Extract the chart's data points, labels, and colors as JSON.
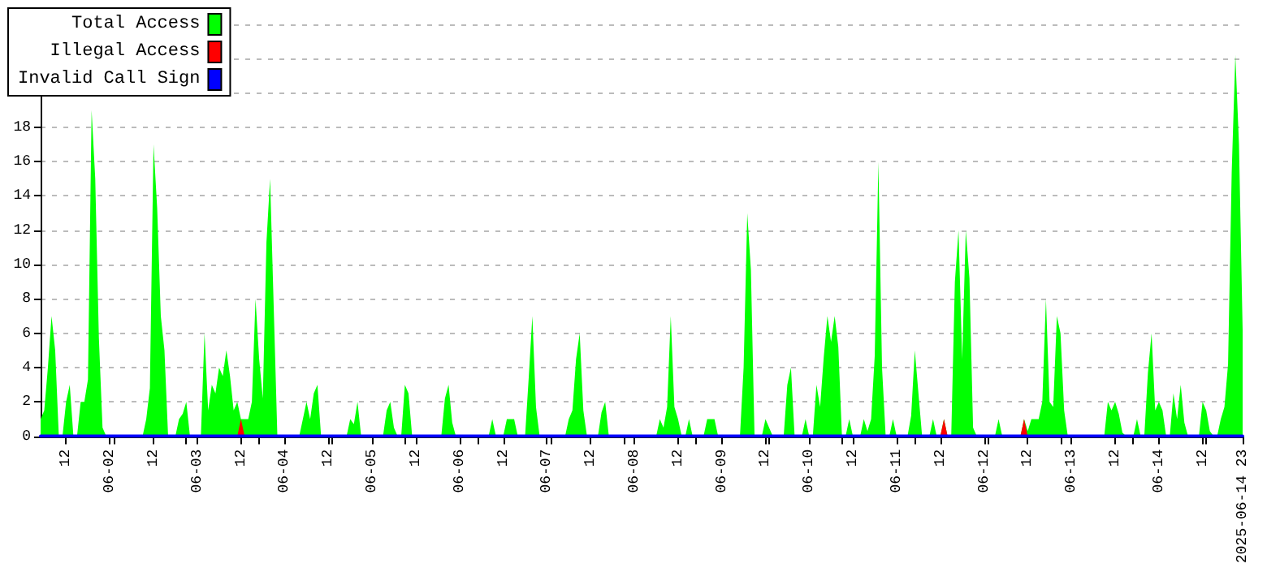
{
  "chart_data": {
    "type": "area",
    "xlim": [
      "2025-06-01T05:00",
      "2025-06-14T23:00"
    ],
    "ylim": [
      0,
      24
    ],
    "xticks": [
      {
        "value": "2025-06-01T12:00",
        "label": "12"
      },
      {
        "value": "2025-06-02T00:00",
        "label": "06-02"
      },
      {
        "value": "2025-06-02T12:00",
        "label": "12"
      },
      {
        "value": "2025-06-03T00:00",
        "label": "06-03"
      },
      {
        "value": "2025-06-03T12:00",
        "label": "12"
      },
      {
        "value": "2025-06-04T00:00",
        "label": "06-04"
      },
      {
        "value": "2025-06-04T12:00",
        "label": "12"
      },
      {
        "value": "2025-06-05T00:00",
        "label": "06-05"
      },
      {
        "value": "2025-06-05T12:00",
        "label": "12"
      },
      {
        "value": "2025-06-06T00:00",
        "label": "06-06"
      },
      {
        "value": "2025-06-06T12:00",
        "label": "12"
      },
      {
        "value": "2025-06-07T00:00",
        "label": "06-07"
      },
      {
        "value": "2025-06-07T12:00",
        "label": "12"
      },
      {
        "value": "2025-06-08T00:00",
        "label": "06-08"
      },
      {
        "value": "2025-06-08T12:00",
        "label": "12"
      },
      {
        "value": "2025-06-09T00:00",
        "label": "06-09"
      },
      {
        "value": "2025-06-09T12:00",
        "label": "12"
      },
      {
        "value": "2025-06-10T00:00",
        "label": "06-10"
      },
      {
        "value": "2025-06-10T12:00",
        "label": "12"
      },
      {
        "value": "2025-06-11T00:00",
        "label": "06-11"
      },
      {
        "value": "2025-06-11T12:00",
        "label": "12"
      },
      {
        "value": "2025-06-12T00:00",
        "label": "06-12"
      },
      {
        "value": "2025-06-12T12:00",
        "label": "12"
      },
      {
        "value": "2025-06-13T00:00",
        "label": "06-13"
      },
      {
        "value": "2025-06-13T12:00",
        "label": "12"
      },
      {
        "value": "2025-06-14T00:00",
        "label": "06-14"
      },
      {
        "value": "2025-06-14T12:00",
        "label": "12"
      },
      {
        "value": "2025-06-14T23:00",
        "label": "2025-06-14 23"
      },
      {
        "value": "2025-06-02T01:00",
        "label": null
      },
      {
        "value": "2025-06-02T21:00",
        "label": null
      },
      {
        "value": "2025-06-03T17:00",
        "label": null
      },
      {
        "value": "2025-06-04T13:00",
        "label": null
      },
      {
        "value": "2025-06-05T09:00",
        "label": null
      },
      {
        "value": "2025-06-06T05:00",
        "label": null
      },
      {
        "value": "2025-06-07T01:00",
        "label": null
      },
      {
        "value": "2025-06-07T21:00",
        "label": null
      },
      {
        "value": "2025-06-08T17:00",
        "label": null
      },
      {
        "value": "2025-06-09T13:00",
        "label": null
      },
      {
        "value": "2025-06-10T09:00",
        "label": null
      },
      {
        "value": "2025-06-11T05:00",
        "label": null
      },
      {
        "value": "2025-06-12T01:00",
        "label": null
      },
      {
        "value": "2025-06-12T21:00",
        "label": null
      },
      {
        "value": "2025-06-13T17:00",
        "label": null
      },
      {
        "value": "2025-06-14T13:00",
        "label": null
      }
    ],
    "yticks": [
      0,
      2,
      4,
      6,
      8,
      10,
      12,
      14,
      16,
      18,
      {
        "value": 20,
        "label": null
      },
      {
        "value": 22,
        "label": null
      },
      {
        "value": 24,
        "label": null
      }
    ],
    "grid": "y",
    "legend": "top left",
    "marker": "none",
    "line_style": "solid",
    "series": [
      {
        "name": "Total Access",
        "color": "#00ff00",
        "x": [
          "2025-06-01T05:00",
          "2025-06-01T06:00",
          "2025-06-01T07:00",
          "2025-06-01T08:00",
          "2025-06-01T09:00",
          "2025-06-01T10:00",
          "2025-06-01T11:00",
          "2025-06-01T12:00",
          "2025-06-01T13:00",
          "2025-06-01T14:00",
          "2025-06-01T15:00",
          "2025-06-01T16:00",
          "2025-06-01T17:00",
          "2025-06-01T18:00",
          "2025-06-01T19:00",
          "2025-06-01T20:00",
          "2025-06-01T21:00",
          "2025-06-01T22:00",
          "2025-06-01T23:00",
          "2025-06-02T09:00",
          "2025-06-02T10:00",
          "2025-06-02T11:00",
          "2025-06-02T12:00",
          "2025-06-02T13:00",
          "2025-06-02T14:00",
          "2025-06-02T15:00",
          "2025-06-02T16:00",
          "2025-06-02T18:00",
          "2025-06-02T19:00",
          "2025-06-02T20:00",
          "2025-06-02T21:00",
          "2025-06-02T22:00",
          "2025-06-03T01:00",
          "2025-06-03T02:00",
          "2025-06-03T03:00",
          "2025-06-03T04:00",
          "2025-06-03T05:00",
          "2025-06-03T06:00",
          "2025-06-03T07:00",
          "2025-06-03T08:00",
          "2025-06-03T09:00",
          "2025-06-03T10:00",
          "2025-06-03T11:00",
          "2025-06-03T12:00",
          "2025-06-03T13:00",
          "2025-06-03T14:00",
          "2025-06-03T15:00",
          "2025-06-03T16:00",
          "2025-06-03T17:00",
          "2025-06-03T18:00",
          "2025-06-03T19:00",
          "2025-06-03T20:00",
          "2025-06-03T21:00",
          "2025-06-03T22:00",
          "2025-06-04T04:00",
          "2025-06-04T05:00",
          "2025-06-04T06:00",
          "2025-06-04T07:00",
          "2025-06-04T08:00",
          "2025-06-04T09:00",
          "2025-06-04T10:00",
          "2025-06-04T17:00",
          "2025-06-04T18:00",
          "2025-06-04T19:00",
          "2025-06-04T20:00",
          "2025-06-04T21:00",
          "2025-06-05T03:00",
          "2025-06-05T04:00",
          "2025-06-05T05:00",
          "2025-06-05T06:00",
          "2025-06-05T07:00",
          "2025-06-05T08:00",
          "2025-06-05T09:00",
          "2025-06-05T10:00",
          "2025-06-05T11:00",
          "2025-06-05T19:00",
          "2025-06-05T20:00",
          "2025-06-05T21:00",
          "2025-06-05T22:00",
          "2025-06-05T23:00",
          "2025-06-06T08:00",
          "2025-06-06T09:00",
          "2025-06-06T10:00",
          "2025-06-06T12:00",
          "2025-06-06T13:00",
          "2025-06-06T14:00",
          "2025-06-06T15:00",
          "2025-06-06T16:00",
          "2025-06-06T18:00",
          "2025-06-06T19:00",
          "2025-06-06T20:00",
          "2025-06-06T21:00",
          "2025-06-06T22:00",
          "2025-06-07T05:00",
          "2025-06-07T06:00",
          "2025-06-07T07:00",
          "2025-06-07T08:00",
          "2025-06-07T09:00",
          "2025-06-07T10:00",
          "2025-06-07T11:00",
          "2025-06-07T14:00",
          "2025-06-07T15:00",
          "2025-06-07T16:00",
          "2025-06-07T17:00",
          "2025-06-08T06:00",
          "2025-06-08T07:00",
          "2025-06-08T08:00",
          "2025-06-08T09:00",
          "2025-06-08T10:00",
          "2025-06-08T11:00",
          "2025-06-08T12:00",
          "2025-06-08T13:00",
          "2025-06-08T14:00",
          "2025-06-08T15:00",
          "2025-06-08T16:00",
          "2025-06-08T19:00",
          "2025-06-08T20:00",
          "2025-06-08T21:00",
          "2025-06-08T22:00",
          "2025-06-08T23:00",
          "2025-06-09T05:00",
          "2025-06-09T06:00",
          "2025-06-09T07:00",
          "2025-06-09T08:00",
          "2025-06-09T09:00",
          "2025-06-09T11:00",
          "2025-06-09T12:00",
          "2025-06-09T13:00",
          "2025-06-09T14:00",
          "2025-06-09T17:00",
          "2025-06-09T18:00",
          "2025-06-09T19:00",
          "2025-06-09T20:00",
          "2025-06-09T22:00",
          "2025-06-09T23:00",
          "2025-06-10T00:00",
          "2025-06-10T01:00",
          "2025-06-10T02:00",
          "2025-06-10T03:00",
          "2025-06-10T04:00",
          "2025-06-10T05:00",
          "2025-06-10T06:00",
          "2025-06-10T07:00",
          "2025-06-10T08:00",
          "2025-06-10T09:00",
          "2025-06-10T10:00",
          "2025-06-10T11:00",
          "2025-06-10T12:00",
          "2025-06-10T14:00",
          "2025-06-10T15:00",
          "2025-06-10T16:00",
          "2025-06-10T17:00",
          "2025-06-10T18:00",
          "2025-06-10T19:00",
          "2025-06-10T20:00",
          "2025-06-10T21:00",
          "2025-06-10T22:00",
          "2025-06-10T23:00",
          "2025-06-11T00:00",
          "2025-06-11T03:00",
          "2025-06-11T04:00",
          "2025-06-11T05:00",
          "2025-06-11T06:00",
          "2025-06-11T07:00",
          "2025-06-11T09:00",
          "2025-06-11T10:00",
          "2025-06-11T11:00",
          "2025-06-11T12:00",
          "2025-06-11T13:00",
          "2025-06-11T14:00",
          "2025-06-11T15:00",
          "2025-06-11T16:00",
          "2025-06-11T17:00",
          "2025-06-11T18:00",
          "2025-06-11T19:00",
          "2025-06-11T20:00",
          "2025-06-11T21:00",
          "2025-06-11T22:00",
          "2025-06-12T03:00",
          "2025-06-12T04:00",
          "2025-06-12T05:00",
          "2025-06-12T10:00",
          "2025-06-12T11:00",
          "2025-06-12T12:00",
          "2025-06-12T13:00",
          "2025-06-12T14:00",
          "2025-06-12T15:00",
          "2025-06-12T16:00",
          "2025-06-12T17:00",
          "2025-06-12T18:00",
          "2025-06-12T19:00",
          "2025-06-12T20:00",
          "2025-06-12T21:00",
          "2025-06-12T22:00",
          "2025-06-12T23:00",
          "2025-06-13T09:00",
          "2025-06-13T10:00",
          "2025-06-13T11:00",
          "2025-06-13T12:00",
          "2025-06-13T13:00",
          "2025-06-13T14:00",
          "2025-06-13T15:00",
          "2025-06-13T17:00",
          "2025-06-13T18:00",
          "2025-06-13T19:00",
          "2025-06-13T20:00",
          "2025-06-13T21:00",
          "2025-06-13T22:00",
          "2025-06-13T23:00",
          "2025-06-14T00:00",
          "2025-06-14T01:00",
          "2025-06-14T02:00",
          "2025-06-14T03:00",
          "2025-06-14T04:00",
          "2025-06-14T05:00",
          "2025-06-14T06:00",
          "2025-06-14T07:00",
          "2025-06-14T08:00",
          "2025-06-14T11:00",
          "2025-06-14T12:00",
          "2025-06-14T13:00",
          "2025-06-14T14:00",
          "2025-06-14T15:00",
          "2025-06-14T16:00",
          "2025-06-14T17:00",
          "2025-06-14T18:00",
          "2025-06-14T19:00",
          "2025-06-14T20:00",
          "2025-06-14T21:00",
          "2025-06-14T22:00",
          "2025-06-14T23:00"
        ],
        "values": [
          1,
          1.5,
          4,
          7,
          5,
          0,
          0,
          2,
          3,
          0,
          0,
          2,
          2,
          3.3,
          19,
          15,
          5.7,
          0.5,
          0,
          0,
          1,
          2.8,
          17,
          13.3,
          7,
          5,
          0,
          0,
          1,
          1.3,
          2,
          0,
          0,
          6,
          1.5,
          3,
          2.5,
          4,
          3.5,
          5,
          3.5,
          1.5,
          2,
          1,
          1,
          1,
          2,
          8,
          4.5,
          2.2,
          11.3,
          15,
          7.5,
          0,
          0,
          1,
          2,
          1,
          2.5,
          3,
          0,
          0,
          1,
          0.7,
          2,
          0,
          0,
          1.5,
          2,
          0.5,
          0,
          0,
          3,
          2.5,
          0,
          0,
          2.2,
          3,
          0.8,
          0,
          0,
          1,
          0,
          0,
          1,
          1,
          1,
          0,
          0,
          3.4,
          7,
          1.7,
          0,
          0,
          1,
          1.5,
          4.5,
          6,
          1.5,
          0,
          0,
          1.4,
          2,
          0,
          0,
          1,
          0.5,
          1.7,
          7,
          1.7,
          1,
          0,
          0,
          1,
          0,
          0,
          1,
          1,
          1,
          0,
          0,
          4,
          13,
          9.7,
          0,
          0,
          1,
          0.5,
          0,
          0,
          3,
          4,
          0,
          0,
          1,
          0,
          0,
          3,
          1.7,
          4.6,
          7,
          5.5,
          7,
          5.2,
          0,
          0,
          1,
          0,
          0,
          1,
          0.3,
          1,
          4.7,
          16,
          4,
          0,
          0,
          1,
          0,
          0,
          1.2,
          5,
          2.5,
          0,
          0,
          1,
          0,
          0,
          1,
          0,
          0,
          9,
          12,
          4.5,
          12,
          9.2,
          0.5,
          0,
          0,
          1,
          0,
          0,
          1,
          0.3,
          1,
          1,
          1,
          2,
          8,
          2,
          1.7,
          7,
          6,
          1.5,
          0,
          0,
          2,
          1.5,
          2,
          1.3,
          0.2,
          0,
          0,
          1,
          0,
          0,
          3.7,
          6,
          1.5,
          2,
          1.5,
          0,
          0,
          2.5,
          1,
          3,
          0.8,
          0,
          0,
          2,
          1.5,
          0.3,
          0,
          0,
          1,
          1.7,
          4.2,
          15.4,
          22.2,
          17,
          6.2
        ]
      },
      {
        "name": "Illegal Access",
        "color": "#ff0000",
        "type": "area",
        "x": [
          "2025-06-01T05:00",
          "2025-06-03T11:00",
          "2025-06-03T12:00",
          "2025-06-03T13:00",
          "2025-06-11T12:00",
          "2025-06-11T13:00",
          "2025-06-11T14:00",
          "2025-06-12T10:00",
          "2025-06-12T11:00",
          "2025-06-12T12:00",
          "2025-06-14T23:00"
        ],
        "values": [
          0,
          0,
          1,
          0,
          0,
          1,
          0,
          0,
          1,
          0,
          0
        ]
      },
      {
        "name": "Invalid Call Sign",
        "color": "#0000ff",
        "type": "line",
        "x": [
          "2025-06-01T05:00",
          "2025-06-14T23:00"
        ],
        "values": [
          0,
          0
        ]
      }
    ]
  }
}
